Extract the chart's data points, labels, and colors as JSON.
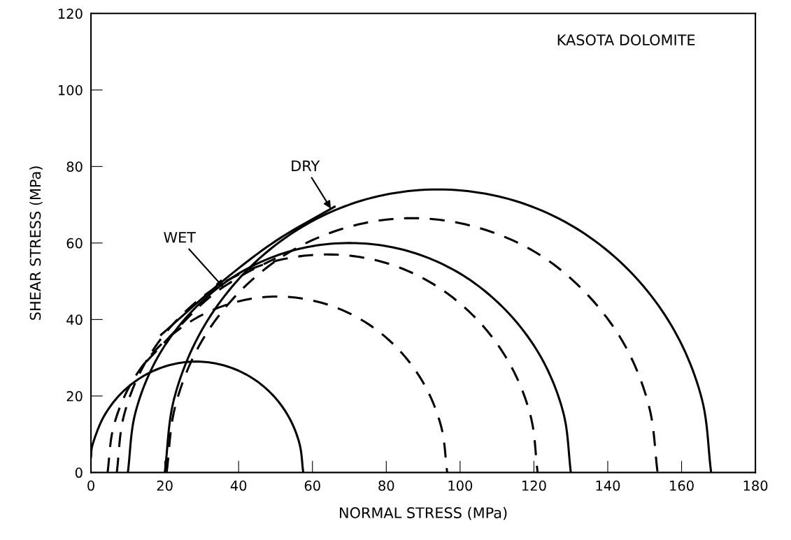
{
  "chart_data": {
    "type": "line",
    "xlabel": "NORMAL STRESS (MPa)",
    "ylabel": "SHEAR STRESS (MPa)",
    "xlim": [
      0,
      180
    ],
    "ylim": [
      0,
      120
    ],
    "xticks": [
      0,
      20,
      40,
      60,
      80,
      100,
      120,
      140,
      160,
      180
    ],
    "yticks": [
      0,
      20,
      40,
      60,
      80,
      100,
      120
    ],
    "grid": false,
    "legend": false,
    "marker": "none",
    "series": [
      {
        "color": "#000000",
        "line_style": "solid",
        "x": [
          0,
          0.5,
          3.4,
          8.0,
          14.0,
          21.0,
          28.5,
          36.0,
          43.0,
          49.0,
          53.6,
          56.5,
          57.5
        ],
        "values": [
          4.1,
          7.5,
          14.5,
          20.5,
          25.1,
          28.0,
          29,
          28.0,
          25.1,
          20.5,
          14.5,
          7.5,
          0
        ]
      },
      {
        "color": "#000000",
        "line_style": "solid",
        "x": [
          10,
          12.0,
          18.0,
          27.6,
          40,
          54.5,
          70,
          85.5,
          100,
          112.4,
          122.0,
          128.0,
          130
        ],
        "values": [
          0,
          15.5,
          30,
          42.4,
          52.0,
          58.0,
          60,
          58.0,
          52.0,
          42.4,
          30,
          15.5,
          0
        ]
      },
      {
        "color": "#000000",
        "line_style": "solid",
        "x": [
          20,
          22.5,
          29.9,
          41.7,
          57,
          74.8,
          94,
          113.2,
          131,
          146.3,
          158.1,
          165.5,
          168
        ],
        "values": [
          0,
          19.2,
          37,
          52.3,
          64.1,
          71.5,
          74,
          71.5,
          64.1,
          52.3,
          37,
          19.2,
          0
        ]
      },
      {
        "color": "#000000",
        "line_style": "dashed",
        "x": [
          4.5,
          6.1,
          10.7,
          18,
          27.5,
          38.6,
          50.5,
          62.4,
          73.5,
          83,
          90.3,
          94.9,
          96.5
        ],
        "values": [
          0,
          11.9,
          23,
          32.5,
          39.8,
          44.4,
          46,
          44.4,
          39.8,
          32.5,
          23,
          11.9,
          0
        ]
      },
      {
        "color": "#000000",
        "line_style": "dashed",
        "x": [
          7,
          8.9,
          14.6,
          23.7,
          35.5,
          49.2,
          64,
          78.8,
          92.5,
          104.3,
          113.4,
          119.1,
          121
        ],
        "values": [
          0,
          14.8,
          28.5,
          40.3,
          49.4,
          55.1,
          57,
          55.1,
          49.4,
          40.3,
          28.5,
          14.8,
          0
        ]
      },
      {
        "color": "#000000",
        "line_style": "dashed",
        "x": [
          20.5,
          22.8,
          29.4,
          40,
          53.75,
          69.8,
          87,
          104.2,
          120.4,
          134,
          144.6,
          151.2,
          153.5
        ],
        "values": [
          0,
          17.2,
          33.3,
          47,
          57.6,
          64.2,
          66.5,
          64.2,
          57.6,
          47,
          33.3,
          17.2,
          0
        ]
      },
      {
        "color": "#000000",
        "line_style": "solid",
        "x": [
          19,
          35,
          50,
          66
        ],
        "values": [
          36,
          49.5,
          60.5,
          69.5
        ]
      },
      {
        "color": "#000000",
        "line_style": "dashed",
        "x": [
          15,
          30,
          40,
          50
        ],
        "values": [
          29,
          44,
          51,
          56
        ]
      }
    ],
    "annotations": [
      {
        "text": "DRY",
        "x": 65,
        "y": 69
      },
      {
        "text": "WET",
        "x": 36,
        "y": 48.3
      },
      "KASOTA DOLOMITE"
    ]
  }
}
